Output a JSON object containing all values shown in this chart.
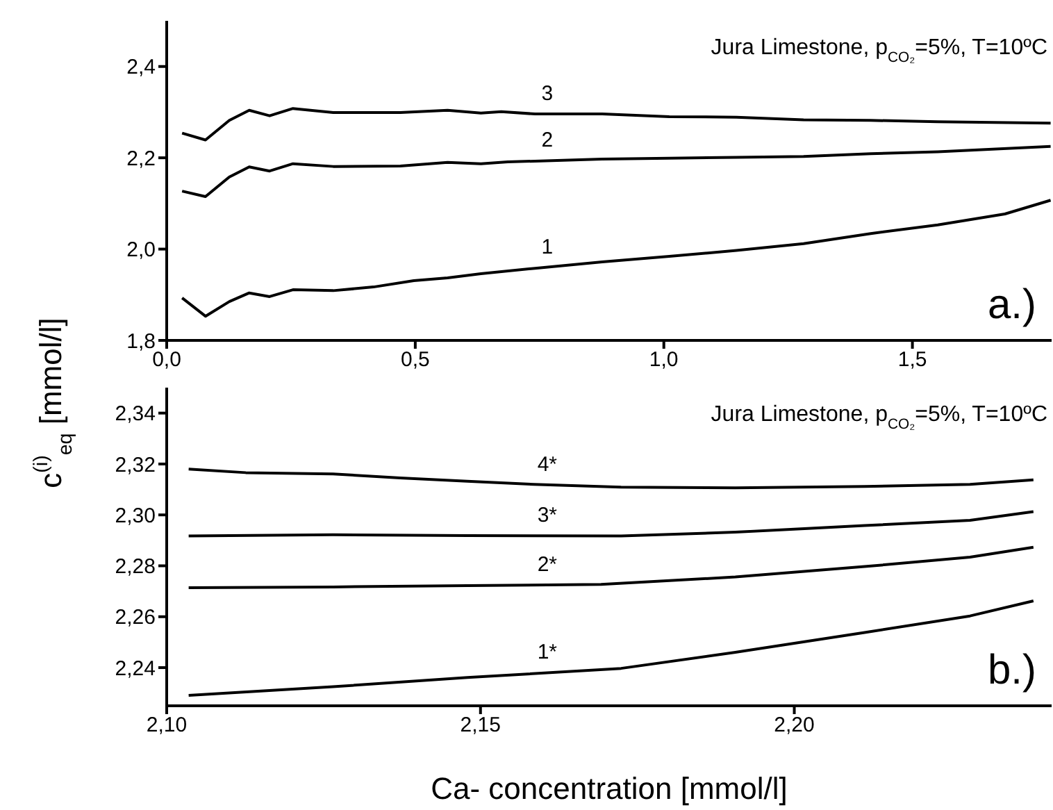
{
  "chart_data": [
    {
      "type": "line",
      "ylabel": "c$^{(i)}$$_{eq}$ [mmol/l]",
      "xlim": [
        0,
        1.78
      ],
      "xticks": [
        {
          "value": 0,
          "label": "0,0"
        },
        {
          "value": 0.5,
          "label": "0,5"
        },
        {
          "value": 1,
          "label": "1,0"
        },
        {
          "value": 1.5,
          "label": "1,5"
        }
      ],
      "ylim": [
        1.8,
        2.5
      ],
      "yticks": [
        {
          "value": 1.8,
          "label": "1,8"
        },
        {
          "value": 2.0,
          "label": "2,0"
        },
        {
          "value": 2.2,
          "label": "2,2"
        },
        {
          "value": 2.4,
          "label": "2,4"
        }
      ],
      "grid": false,
      "legend": false,
      "line_style": "solid",
      "marker": "none",
      "series": [
        {
          "name": "1",
          "color": "#000000",
          "x": [
            0.031,
            0.078,
            0.126,
            0.166,
            0.207,
            0.254,
            0.335,
            0.416,
            0.497,
            0.565,
            0.632,
            0.741,
            0.876,
            1.011,
            1.146,
            1.281,
            1.416,
            1.551,
            1.686,
            1.778
          ],
          "values": [
            1.893,
            1.853,
            1.885,
            1.904,
            1.896,
            1.911,
            1.909,
            1.917,
            1.931,
            1.937,
            1.946,
            1.958,
            1.972,
            1.984,
            1.997,
            2.012,
            2.034,
            2.053,
            2.077,
            2.107
          ]
        },
        {
          "name": "2",
          "color": "#000000",
          "x": [
            0.031,
            0.078,
            0.126,
            0.166,
            0.207,
            0.254,
            0.335,
            0.47,
            0.565,
            0.632,
            0.686,
            0.876,
            1.011,
            1.146,
            1.281,
            1.416,
            1.551,
            1.778
          ],
          "values": [
            2.127,
            2.115,
            2.158,
            2.18,
            2.171,
            2.187,
            2.181,
            2.182,
            2.19,
            2.187,
            2.191,
            2.197,
            2.199,
            2.201,
            2.203,
            2.209,
            2.213,
            2.225
          ]
        },
        {
          "name": "3",
          "color": "#000000",
          "x": [
            0.031,
            0.078,
            0.126,
            0.166,
            0.207,
            0.254,
            0.335,
            0.47,
            0.565,
            0.632,
            0.673,
            0.741,
            0.876,
            1.011,
            1.146,
            1.281,
            1.416,
            1.551,
            1.778
          ],
          "values": [
            2.254,
            2.239,
            2.282,
            2.304,
            2.292,
            2.308,
            2.299,
            2.299,
            2.304,
            2.298,
            2.301,
            2.296,
            2.296,
            2.29,
            2.289,
            2.283,
            2.282,
            2.279,
            2.276
          ]
        }
      ],
      "annotations": [
        "Jura Limestone, p$_{CO₂}$=5%, T=10ºC",
        "a.)"
      ]
    },
    {
      "type": "line",
      "xlabel": "Ca- concentration [mmol/l]",
      "xlim": [
        2.1,
        2.241
      ],
      "xticks": [
        {
          "value": 2.1,
          "label": "2,10"
        },
        {
          "value": 2.15,
          "label": "2,15"
        },
        {
          "value": 2.2,
          "label": "2,20"
        }
      ],
      "ylim": [
        2.225,
        2.35
      ],
      "yticks": [
        {
          "value": 2.24,
          "label": "2,24"
        },
        {
          "value": 2.26,
          "label": "2,26"
        },
        {
          "value": 2.28,
          "label": "2,28"
        },
        {
          "value": 2.3,
          "label": "2,30"
        },
        {
          "value": 2.32,
          "label": "2,32"
        },
        {
          "value": 2.34,
          "label": "2,34"
        }
      ],
      "grid": false,
      "legend": false,
      "line_style": "solid",
      "marker": "none",
      "series": [
        {
          "name": "1*",
          "color": "#000000",
          "x": [
            2.1035,
            2.1265,
            2.1479,
            2.1724,
            2.1906,
            2.2112,
            2.228,
            2.2381
          ],
          "values": [
            2.2291,
            2.2325,
            2.2361,
            2.2397,
            2.246,
            2.2538,
            2.2603,
            2.2662
          ]
        },
        {
          "name": "2*",
          "color": "#000000",
          "x": [
            2.1035,
            2.1265,
            2.1479,
            2.1692,
            2.1906,
            2.2112,
            2.228,
            2.2381
          ],
          "values": [
            2.2714,
            2.2717,
            2.2722,
            2.2727,
            2.2756,
            2.2797,
            2.2834,
            2.2873
          ]
        },
        {
          "name": "3*",
          "color": "#000000",
          "x": [
            2.1035,
            2.1265,
            2.1479,
            2.1724,
            2.1906,
            2.2112,
            2.228,
            2.2381
          ],
          "values": [
            2.2917,
            2.2922,
            2.2919,
            2.2917,
            2.2932,
            2.2958,
            2.2979,
            2.3013
          ]
        },
        {
          "name": "4*",
          "color": "#000000",
          "x": [
            2.1035,
            2.1126,
            2.1265,
            2.1372,
            2.1479,
            2.1585,
            2.1724,
            2.1906,
            2.2112,
            2.228,
            2.2381
          ],
          "values": [
            2.318,
            2.3166,
            2.3161,
            2.3145,
            2.3132,
            2.312,
            2.3109,
            2.3106,
            2.3112,
            2.312,
            2.3138
          ]
        }
      ],
      "annotations": [
        "Jura Limestone, p$_{CO₂}$=5%, T=10ºC",
        "b.)"
      ]
    }
  ]
}
